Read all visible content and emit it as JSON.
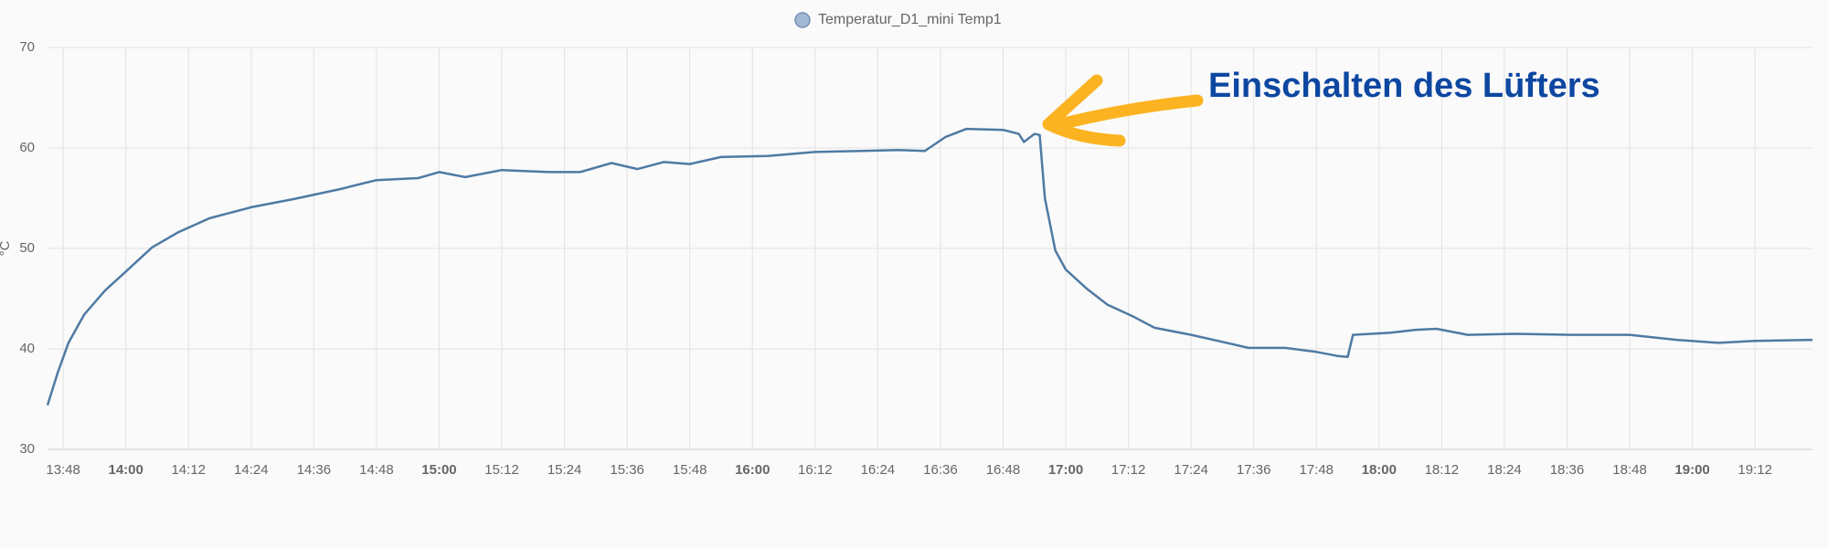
{
  "chart_data": {
    "type": "line",
    "annotation": "Einschalten des Lüfters",
    "y_label": "°C",
    "x": [
      "13:45",
      "13:47",
      "13:49",
      "13:52",
      "13:56",
      "14:00",
      "14:05",
      "14:10",
      "14:16",
      "14:24",
      "14:32",
      "14:41",
      "14:48",
      "14:56",
      "15:00",
      "15:05",
      "15:12",
      "15:21",
      "15:27",
      "15:33",
      "15:38",
      "15:43",
      "15:48",
      "15:54",
      "16:03",
      "16:12",
      "16:21",
      "16:28",
      "16:33",
      "16:37",
      "16:41",
      "16:48",
      "16:51",
      "16:52",
      "16:54",
      "16:55",
      "16:56",
      "16:58",
      "17:00",
      "17:04",
      "17:08",
      "17:13",
      "17:17",
      "17:24",
      "17:30",
      "17:35",
      "17:42",
      "17:48",
      "17:52",
      "17:54",
      "17:55",
      "18:02",
      "18:07",
      "18:11",
      "18:17",
      "18:26",
      "18:37",
      "18:48",
      "18:57",
      "19:05",
      "19:12",
      "19:23"
    ],
    "series": [
      {
        "name": "Temperatur_D1_mini Temp1",
        "color": "#4f7aa3",
        "values": [
          34.4,
          37.7,
          40.6,
          43.4,
          45.8,
          47.7,
          50.1,
          51.6,
          53.0,
          54.1,
          54.9,
          55.9,
          56.8,
          57.0,
          57.6,
          57.1,
          57.8,
          57.6,
          57.6,
          58.5,
          57.9,
          58.6,
          58.4,
          59.1,
          59.2,
          59.6,
          59.7,
          59.8,
          59.7,
          61.1,
          61.9,
          61.8,
          61.4,
          60.6,
          61.4,
          61.3,
          55.0,
          49.8,
          47.9,
          46.0,
          44.4,
          43.2,
          42.1,
          41.4,
          40.7,
          40.1,
          40.1,
          39.7,
          39.3,
          39.2,
          41.4,
          41.6,
          41.9,
          42.0,
          41.4,
          41.5,
          41.4,
          41.4,
          40.9,
          40.6,
          40.8,
          40.9
        ]
      }
    ],
    "xlim": [
      "13:45",
      "19:23"
    ],
    "xticks": [
      "13:48",
      "14:00",
      "14:12",
      "14:24",
      "14:36",
      "14:48",
      "15:00",
      "15:12",
      "15:24",
      "15:36",
      "15:48",
      "16:00",
      "16:12",
      "16:24",
      "16:36",
      "16:48",
      "17:00",
      "17:12",
      "17:24",
      "17:36",
      "17:48",
      "18:00",
      "18:12",
      "18:24",
      "18:36",
      "18:48",
      "19:00",
      "19:12"
    ],
    "ylim": [
      30,
      70
    ],
    "yticks": [
      30,
      40,
      50,
      60,
      70
    ],
    "grid": true
  }
}
